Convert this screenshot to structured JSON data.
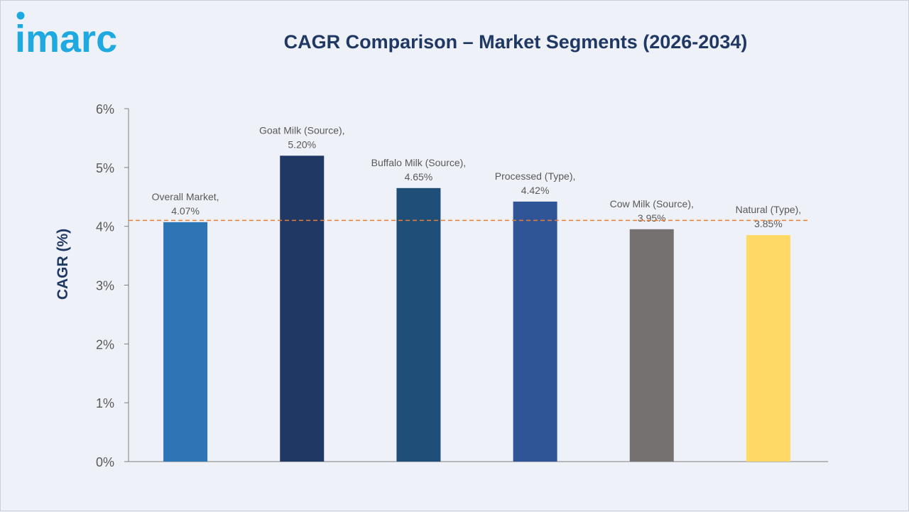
{
  "brand": {
    "logo_text": "imarc",
    "logo_color": "#1fa9e1"
  },
  "chart_data": {
    "type": "bar",
    "title": "CAGR Comparison – Market Segments (2026-2034)",
    "xlabel": "",
    "ylabel": "CAGR (%)",
    "ylim": [
      0,
      6
    ],
    "yticks": [
      "0%",
      "1%",
      "2%",
      "3%",
      "4%",
      "5%",
      "6%"
    ],
    "categories": [
      "Overall Market,",
      "Goat Milk (Source),",
      "Buffalo Milk (Source),",
      "Processed (Type),",
      "Cow Milk (Source),",
      "Natural (Type),"
    ],
    "values": [
      4.07,
      5.2,
      4.65,
      4.42,
      3.95,
      3.85
    ],
    "value_labels": [
      "4.07%",
      "5.20%",
      "4.65%",
      "4.42%",
      "3.95%",
      "3.85%"
    ],
    "colors": [
      "#2e75b6",
      "#1f3864",
      "#1f4e79",
      "#2f5597",
      "#767171",
      "#ffd966"
    ],
    "reference_line": {
      "value": 4.1,
      "color": "#ed7d31",
      "style": "dashed"
    },
    "grid": false,
    "legend": "none"
  }
}
